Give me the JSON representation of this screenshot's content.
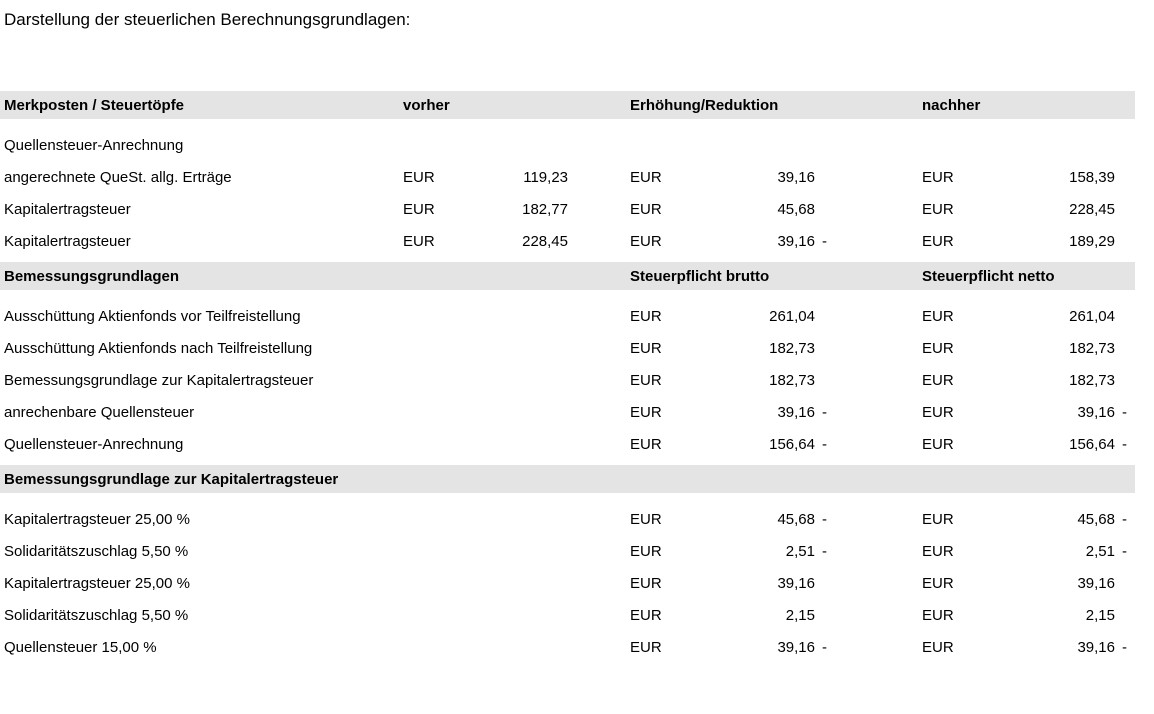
{
  "page": {
    "title": "Darstellung der steuerlichen Berechnungsgrundlagen:"
  },
  "table": {
    "colors": {
      "band_bg": "#e4e4e4",
      "text": "#000000"
    },
    "header": {
      "label": "Merkposten / Steuertöpfe",
      "vorher": "vorher",
      "change": "Erhöhung/Reduktion",
      "nachher": "nachher"
    },
    "sections": [
      {
        "rows": [
          {
            "label": "Quellensteuer-Anrechnung"
          },
          {
            "label": "angerechnete QueSt. allg. Erträge",
            "v_cur": "EUR",
            "v_val": "119,23",
            "c_cur": "EUR",
            "c_val": "39,16",
            "n_cur": "EUR",
            "n_val": "158,39"
          },
          {
            "label": "Kapitalertragsteuer",
            "v_cur": "EUR",
            "v_val": "182,77",
            "c_cur": "EUR",
            "c_val": "45,68",
            "n_cur": "EUR",
            "n_val": "228,45"
          },
          {
            "label": "Kapitalertragsteuer",
            "v_cur": "EUR",
            "v_val": "228,45",
            "c_cur": "EUR",
            "c_val": "39,16",
            "c_neg": "-",
            "n_cur": "EUR",
            "n_val": "189,29"
          }
        ]
      },
      {
        "band": {
          "label": "Bemessungsgrundlagen",
          "change": "Steuerpflicht brutto",
          "nachher": "Steuerpflicht netto"
        },
        "rows": [
          {
            "label": "Ausschüttung Aktienfonds vor Teilfreistellung",
            "c_cur": "EUR",
            "c_val": "261,04",
            "n_cur": "EUR",
            "n_val": "261,04"
          },
          {
            "label": "Ausschüttung Aktienfonds nach Teilfreistellung",
            "c_cur": "EUR",
            "c_val": "182,73",
            "n_cur": "EUR",
            "n_val": "182,73"
          },
          {
            "label": "Bemessungsgrundlage zur Kapitalertragsteuer",
            "c_cur": "EUR",
            "c_val": "182,73",
            "n_cur": "EUR",
            "n_val": "182,73"
          },
          {
            "label": "anrechenbare Quellensteuer",
            "c_cur": "EUR",
            "c_val": "39,16",
            "c_neg": "-",
            "n_cur": "EUR",
            "n_val": "39,16",
            "n_neg": "-"
          },
          {
            "label": "Quellensteuer-Anrechnung",
            "c_cur": "EUR",
            "c_val": "156,64",
            "c_neg": "-",
            "n_cur": "EUR",
            "n_val": "156,64",
            "n_neg": "-"
          }
        ]
      },
      {
        "band": {
          "label": "Bemessungsgrundlage zur Kapitalertragsteuer"
        },
        "rows": [
          {
            "label": "Kapitalertragsteuer 25,00 %",
            "c_cur": "EUR",
            "c_val": "45,68",
            "c_neg": "-",
            "n_cur": "EUR",
            "n_val": "45,68",
            "n_neg": "-"
          },
          {
            "label": "Solidaritätszuschlag 5,50 %",
            "c_cur": "EUR",
            "c_val": "2,51",
            "c_neg": "-",
            "n_cur": "EUR",
            "n_val": "2,51",
            "n_neg": "-"
          },
          {
            "label": "Kapitalertragsteuer 25,00 %",
            "c_cur": "EUR",
            "c_val": "39,16",
            "n_cur": "EUR",
            "n_val": "39,16"
          },
          {
            "label": "Solidaritätszuschlag 5,50 %",
            "c_cur": "EUR",
            "c_val": "2,15",
            "n_cur": "EUR",
            "n_val": "2,15"
          },
          {
            "label": "Quellensteuer 15,00 %",
            "c_cur": "EUR",
            "c_val": "39,16",
            "c_neg": "-",
            "n_cur": "EUR",
            "n_val": "39,16",
            "n_neg": "-"
          }
        ]
      }
    ]
  }
}
